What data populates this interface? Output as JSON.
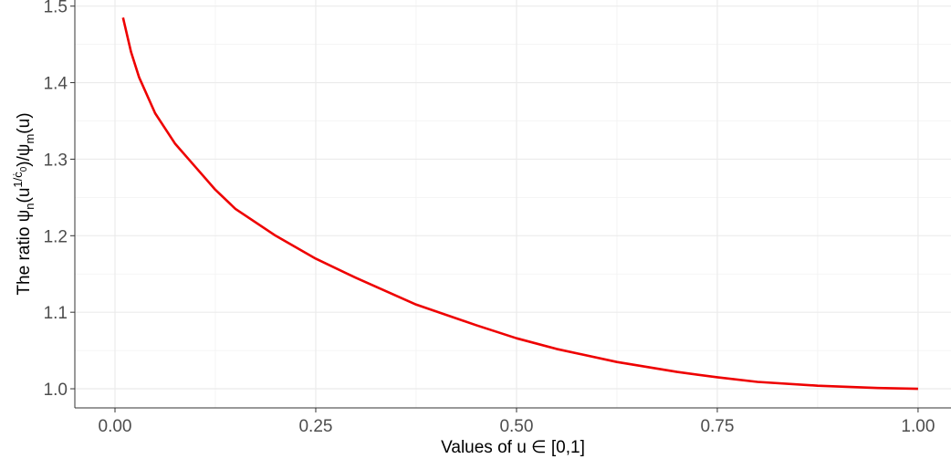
{
  "chart_data": {
    "type": "line",
    "x_label": "Values of u ∈ [0,1]",
    "y_label": [
      "The ratio ψ",
      "n",
      "(u",
      "1/ċ",
      "0",
      ")/ψ",
      "m",
      "(u)"
    ],
    "x": [
      0.01,
      0.02,
      0.03,
      0.05,
      0.075,
      0.1,
      0.125,
      0.15,
      0.2,
      0.25,
      0.3,
      0.375,
      0.45,
      0.5,
      0.55,
      0.625,
      0.7,
      0.75,
      0.8,
      0.875,
      0.95,
      1.0
    ],
    "series": [
      {
        "color": "#ee0000",
        "values": [
          1.485,
          1.44,
          1.407,
          1.36,
          1.32,
          1.29,
          1.26,
          1.235,
          1.2,
          1.17,
          1.145,
          1.11,
          1.083,
          1.066,
          1.052,
          1.035,
          1.022,
          1.015,
          1.009,
          1.004,
          1.001,
          1.0
        ]
      }
    ],
    "xlim": [
      -0.05,
      1.041
    ],
    "ylim": [
      0.975,
      1.508
    ],
    "xticks": [
      {
        "value": 0,
        "label": "0.00"
      },
      0.25,
      {
        "value": 0.5,
        "label": "0.50"
      },
      0.75,
      {
        "value": 1,
        "label": "1.00"
      }
    ],
    "yticks": [
      {
        "value": 1,
        "label": "1.0"
      },
      1.1,
      1.2,
      1.3,
      1.4,
      1.5
    ],
    "xminorticks": [
      0.125,
      0.375,
      0.625,
      0.875
    ],
    "yminorticks": [
      1.05,
      1.15,
      1.25,
      1.35,
      1.45
    ],
    "grid": true
  }
}
